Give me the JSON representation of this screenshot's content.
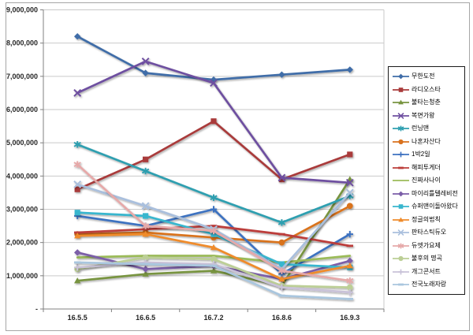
{
  "chart_data": {
    "type": "line",
    "title": "",
    "xlabel": "",
    "ylabel": "",
    "ylim": [
      0,
      9000000
    ],
    "grid": true,
    "legend_position": "right",
    "categories": [
      "16.5.5",
      "16.6.5",
      "16.7.2",
      "16.8.6",
      "16.9.3"
    ],
    "y_tick_labels": [
      "9,000,000",
      "8,000,000",
      "7,000,000",
      "6,000,000",
      "5,000,000",
      "4,000,000",
      "3,000,000",
      "2,000,000",
      "1,000,000",
      "-"
    ],
    "series": [
      {
        "name": "무한도전",
        "color": "#3F6DA8",
        "marker": "diamond",
        "values": [
          8200000,
          7100000,
          6900000,
          7050000,
          7200000
        ]
      },
      {
        "name": "라디오스타",
        "color": "#A93B3B",
        "marker": "square",
        "values": [
          3600000,
          4500000,
          5650000,
          3900000,
          4650000
        ]
      },
      {
        "name": "불타는청춘",
        "color": "#789440",
        "marker": "triangle",
        "values": [
          850000,
          1050000,
          1150000,
          700000,
          3900000
        ]
      },
      {
        "name": "복면가왕",
        "color": "#6E4FA0",
        "marker": "x",
        "values": [
          6500000,
          7450000,
          6800000,
          3950000,
          3800000
        ]
      },
      {
        "name": "런닝맨",
        "color": "#2E9FB0",
        "marker": "asterisk",
        "values": [
          4950000,
          4150000,
          3350000,
          2600000,
          3400000
        ]
      },
      {
        "name": "나혼자산다",
        "color": "#D9731F",
        "marker": "circle",
        "values": [
          2250000,
          2300000,
          2150000,
          2000000,
          3100000
        ]
      },
      {
        "name": "1박2일",
        "color": "#3E72C0",
        "marker": "plus",
        "values": [
          2800000,
          2500000,
          3000000,
          1050000,
          2250000
        ]
      },
      {
        "name": "해피투게더",
        "color": "#BC3D3A",
        "marker": "dash",
        "values": [
          2300000,
          2400000,
          2500000,
          2250000,
          1900000
        ]
      },
      {
        "name": "진짜사나이",
        "color": "#9BBB59",
        "marker": "none",
        "values": [
          1550000,
          1600000,
          1600000,
          1400000,
          1600000
        ]
      },
      {
        "name": "마이리틀텔레비전",
        "color": "#7B5EA8",
        "marker": "diamond",
        "values": [
          1700000,
          1200000,
          1300000,
          900000,
          1450000
        ]
      },
      {
        "name": "슈퍼맨이돌아왔다",
        "color": "#38B6CE",
        "marker": "square",
        "values": [
          2900000,
          2800000,
          2250000,
          1350000,
          1250000
        ]
      },
      {
        "name": "정글의법칙",
        "color": "#EF8B2C",
        "marker": "triangle",
        "values": [
          2200000,
          2250000,
          1850000,
          900000,
          1300000
        ]
      },
      {
        "name": "판타스틱듀오",
        "color": "#A9BFDD",
        "marker": "x",
        "values": [
          3750000,
          3100000,
          2400000,
          1200000,
          3500000
        ]
      },
      {
        "name": "듀엣가요제",
        "color": "#E6A9A9",
        "marker": "asterisk",
        "values": [
          4350000,
          2500000,
          2350000,
          1150000,
          850000
        ]
      },
      {
        "name": "불후의 명곡",
        "color": "#BCCF96",
        "marker": "circle",
        "values": [
          1200000,
          1550000,
          1500000,
          700000,
          650000
        ]
      },
      {
        "name": "개그콘서트",
        "color": "#C9C2D8",
        "marker": "plus",
        "values": [
          1250000,
          1400000,
          1350000,
          650000,
          500000
        ]
      },
      {
        "name": "전국노래자랑",
        "color": "#A9C6DE",
        "marker": "dash",
        "values": [
          1400000,
          1350000,
          1300000,
          400000,
          300000
        ]
      }
    ]
  }
}
